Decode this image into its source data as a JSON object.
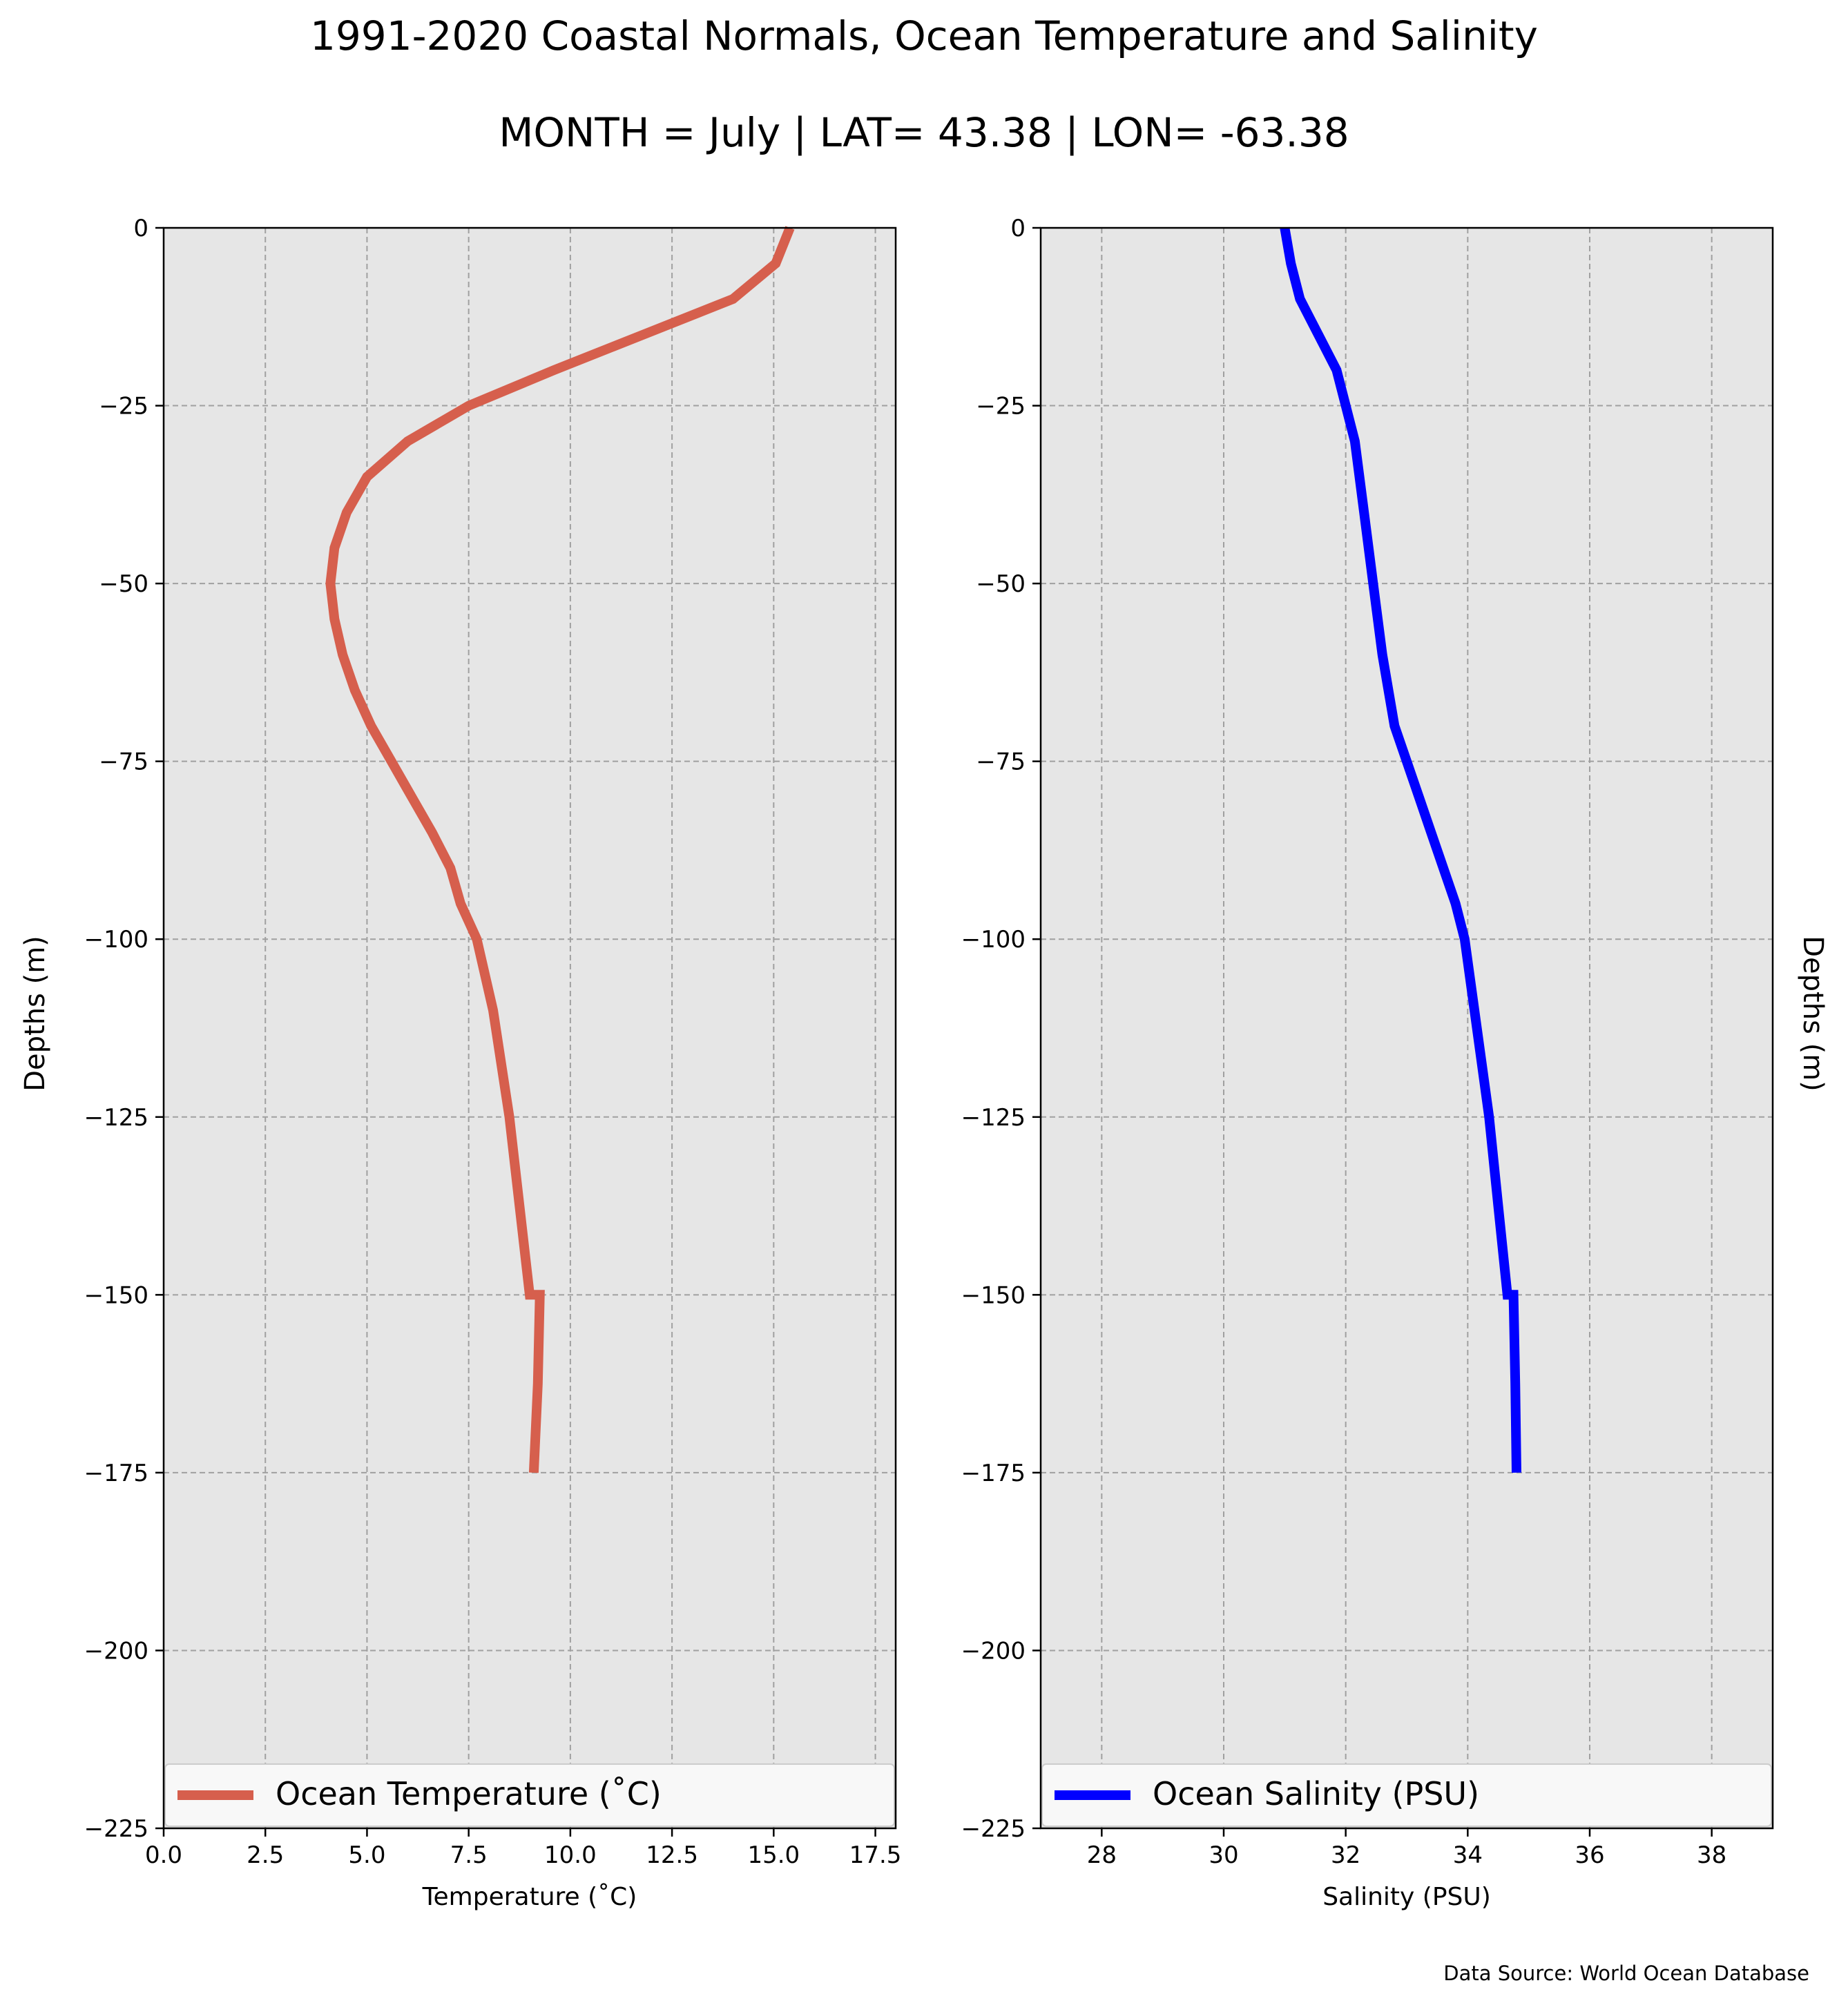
{
  "title": "1991-2020 Coastal Normals, Ocean Temperature and Salinity",
  "subtitle": "MONTH = July | LAT= 43.38 | LON= -63.38",
  "source_note": "Data Source: World Ocean Database",
  "colors": {
    "plot_background": "#e6e6e6",
    "grid": "#a0a0a0",
    "temperature_line": "#d65f4d",
    "salinity_line": "#0000ff",
    "legend_background": "#f8f8f8"
  },
  "chart_data": [
    {
      "type": "line",
      "xlabel": "Temperature ($^\\circ$C)",
      "xlabel_display": "Temperature (˚C)",
      "ylabel": "Depths (m)",
      "xlim": [
        0,
        18
      ],
      "ylim": [
        -225,
        0
      ],
      "xticks": [
        "0.0",
        "2.5",
        "5.0",
        "7.5",
        "10.0",
        "12.5",
        "15.0",
        "17.5"
      ],
      "xtick_values": [
        0,
        2.5,
        5,
        7.5,
        10,
        12.5,
        15,
        17.5
      ],
      "yticks": [
        "0",
        "−25",
        "−50",
        "−75",
        "−100",
        "−125",
        "−150",
        "−175",
        "−200",
        "−225"
      ],
      "ytick_values": [
        0,
        -25,
        -50,
        -75,
        -100,
        -125,
        -150,
        -175,
        -200,
        -225
      ],
      "grid": true,
      "legend_position": "bottom",
      "series": [
        {
          "name": "Ocean Temperature (˚C)",
          "x": [
            15.4,
            15.05,
            14.0,
            11.8,
            9.6,
            7.5,
            6.0,
            5.0,
            4.5,
            4.2,
            4.1,
            4.2,
            4.4,
            4.7,
            5.1,
            5.6,
            6.1,
            6.6,
            7.05,
            7.3,
            7.7,
            8.1,
            8.5,
            8.75,
            9.0,
            9.25,
            9.2,
            9.1
          ],
          "y": [
            0,
            -5,
            -10,
            -15,
            -20,
            -25,
            -30,
            -35,
            -40,
            -45,
            -50,
            -55,
            -60,
            -65,
            -70,
            -75,
            -80,
            -85,
            -90,
            -95,
            -100,
            -110,
            -125,
            -137.5,
            -150,
            -150,
            -162.5,
            -175
          ]
        }
      ]
    },
    {
      "type": "line",
      "xlabel": "Salinity (PSU)",
      "ylabel": "Depths (m)",
      "xlim": [
        27,
        39
      ],
      "ylim": [
        -225,
        0
      ],
      "xticks": [
        "28",
        "30",
        "32",
        "34",
        "36",
        "38"
      ],
      "xtick_values": [
        28,
        30,
        32,
        34,
        36,
        38
      ],
      "yticks": [
        "0",
        "−25",
        "−50",
        "−75",
        "−100",
        "−125",
        "−150",
        "−175",
        "−200",
        "−225"
      ],
      "ytick_values": [
        0,
        -25,
        -50,
        -75,
        -100,
        -125,
        -150,
        -175,
        -200,
        -225
      ],
      "grid": true,
      "legend_position": "bottom",
      "series": [
        {
          "name": "Ocean Salinity (PSU)",
          "x": [
            31.0,
            31.1,
            31.25,
            31.55,
            31.85,
            32.0,
            32.15,
            32.3,
            32.45,
            32.6,
            32.8,
            33.0,
            33.2,
            33.4,
            33.6,
            33.8,
            33.95,
            34.15,
            34.35,
            34.5,
            34.65,
            34.75,
            34.78,
            34.8
          ],
          "y": [
            0,
            -5,
            -10,
            -15,
            -20,
            -25,
            -30,
            -40,
            -50,
            -60,
            -70,
            -75,
            -80,
            -85,
            -90,
            -95,
            -100,
            -112.5,
            -125,
            -137.5,
            -150,
            -150,
            -162.5,
            -175
          ]
        }
      ]
    }
  ]
}
